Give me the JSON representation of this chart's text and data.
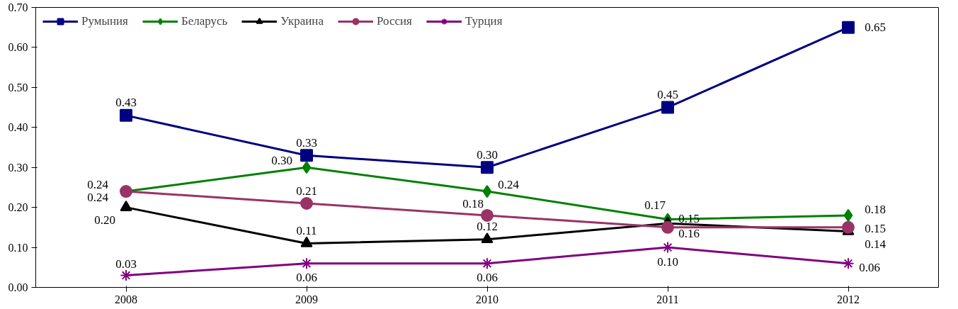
{
  "chart_data": {
    "type": "line",
    "categories": [
      "2008",
      "2009",
      "2010",
      "2011",
      "2012"
    ],
    "ylim": [
      0,
      0.7
    ],
    "yticks": [
      {
        "value": 0,
        "label": "0.00"
      },
      {
        "value": 0.1,
        "label": "0.10"
      },
      {
        "value": 0.2,
        "label": "0.20"
      },
      {
        "value": 0.3,
        "label": "0.30"
      },
      {
        "value": 0.4,
        "label": "0.40"
      },
      {
        "value": 0.5,
        "label": "0.50"
      },
      {
        "value": 0.6,
        "label": "0.60"
      },
      {
        "value": 0.7,
        "label": "0.70"
      }
    ],
    "grid": false,
    "legend": "top left",
    "series": [
      {
        "name": "Румыния",
        "color": "#000080",
        "marker": "square",
        "values": [
          0.43,
          0.33,
          0.3,
          0.45,
          0.65
        ],
        "value_labels": [
          "0.43",
          "0.33",
          "0.30",
          "0.45",
          "0.65"
        ]
      },
      {
        "name": "Беларусь",
        "color": "#008000",
        "marker": "diamond",
        "values": [
          0.24,
          0.3,
          0.24,
          0.17,
          0.18
        ],
        "value_labels": [
          "0.24",
          "0.30",
          "0.24",
          "0.17",
          "0.18"
        ]
      },
      {
        "name": "Украина",
        "color": "#000000",
        "marker": "triangle",
        "values": [
          0.2,
          0.11,
          0.12,
          0.16,
          0.14
        ],
        "value_labels": [
          "0.20",
          "0.11",
          "0.12",
          "0.16",
          "0.14"
        ]
      },
      {
        "name": "Россия",
        "color": "#993366",
        "marker": "circle",
        "values": [
          0.24,
          0.21,
          0.18,
          0.15,
          0.15
        ],
        "value_labels": [
          "0.24",
          "0.21",
          "0.18",
          "0.15",
          "0.15"
        ]
      },
      {
        "name": "Турция",
        "color": "#800080",
        "marker": "cross",
        "values": [
          0.03,
          0.06,
          0.06,
          0.1,
          0.06
        ],
        "value_labels": [
          "0.03",
          "0.06",
          "0.06",
          "0.10",
          "0.06"
        ]
      }
    ]
  }
}
